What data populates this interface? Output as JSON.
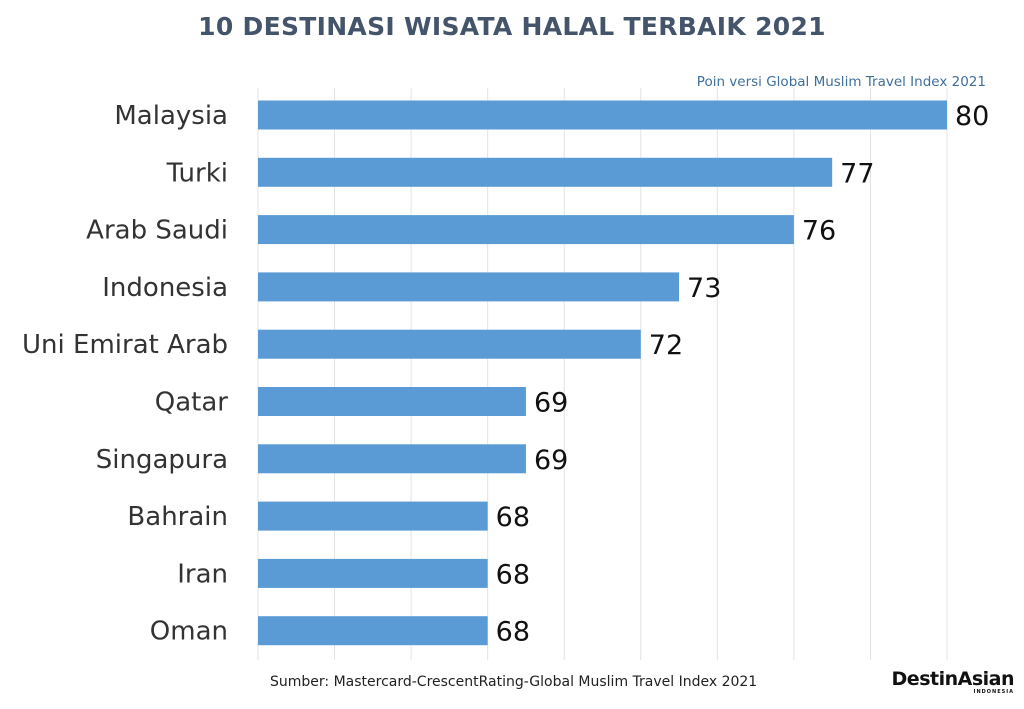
{
  "chart_data": {
    "type": "bar",
    "orientation": "horizontal",
    "title": "10 DESTINASI WISATA HALAL TERBAIK 2021",
    "subtitle": "Poin versi Global Muslim Travel Index 2021",
    "categories": [
      "Malaysia",
      "Turki",
      "Arab Saudi",
      "Indonesia",
      "Uni Emirat Arab",
      "Qatar",
      "Singapura",
      "Bahrain",
      "Iran",
      "Oman"
    ],
    "values": [
      80,
      77,
      76,
      73,
      72,
      69,
      69,
      68,
      68,
      68
    ],
    "data_labels": [
      "80",
      "77",
      "76",
      "73",
      "72",
      "69",
      "69",
      "68",
      "68",
      "68"
    ],
    "xlim": [
      62,
      80
    ],
    "grid": true,
    "bar_color": "#5b9bd5",
    "source": "Sumber: Mastercard-CrescentRating-Global  Muslim Travel Index 2021"
  },
  "brand": {
    "name": "DestinAsian",
    "sub": "INDONESIA"
  }
}
